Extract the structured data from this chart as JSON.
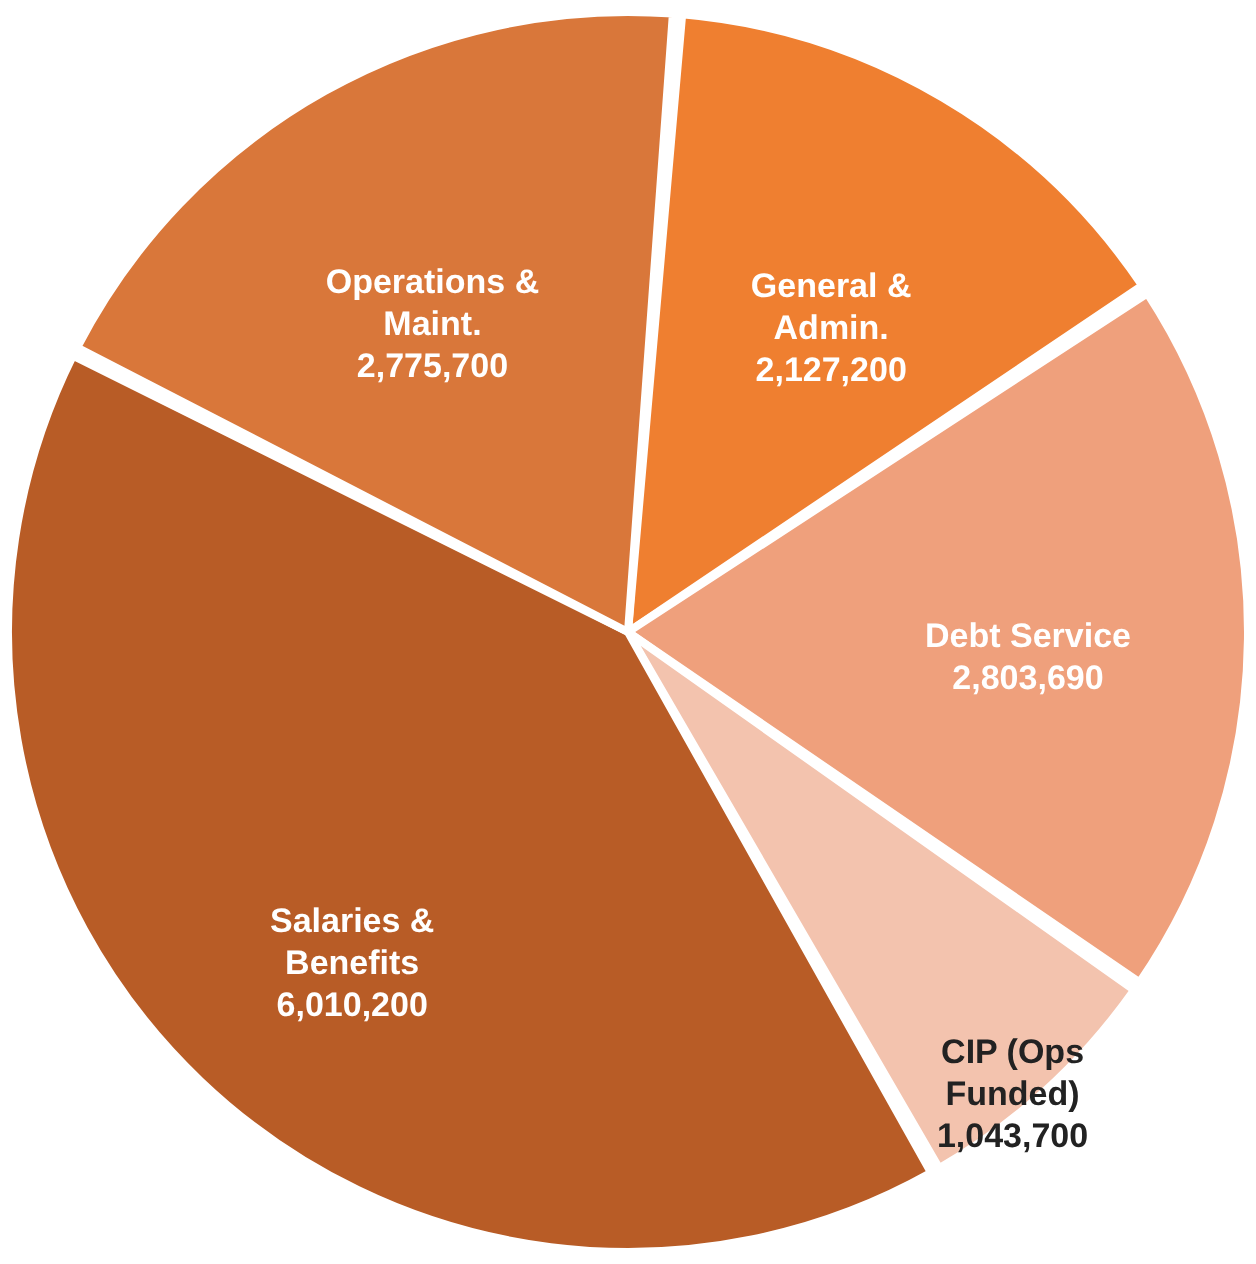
{
  "chart_data": {
    "type": "pie",
    "categories": [
      "General & Admin.",
      "Debt Service",
      "CIP (Ops Funded)",
      "Salaries & Benefits",
      "Operations & Maint."
    ],
    "values": [
      2127200,
      2803690,
      1043700,
      6010200,
      2775700
    ],
    "colors": [
      "#ef7f30",
      "#efa07c",
      "#f3c3ae",
      "#b85c26",
      "#d9773a"
    ],
    "value_labels": [
      "2,127,200",
      "2,803,690",
      "1,043,700",
      "6,010,200",
      "2,775,700"
    ]
  }
}
